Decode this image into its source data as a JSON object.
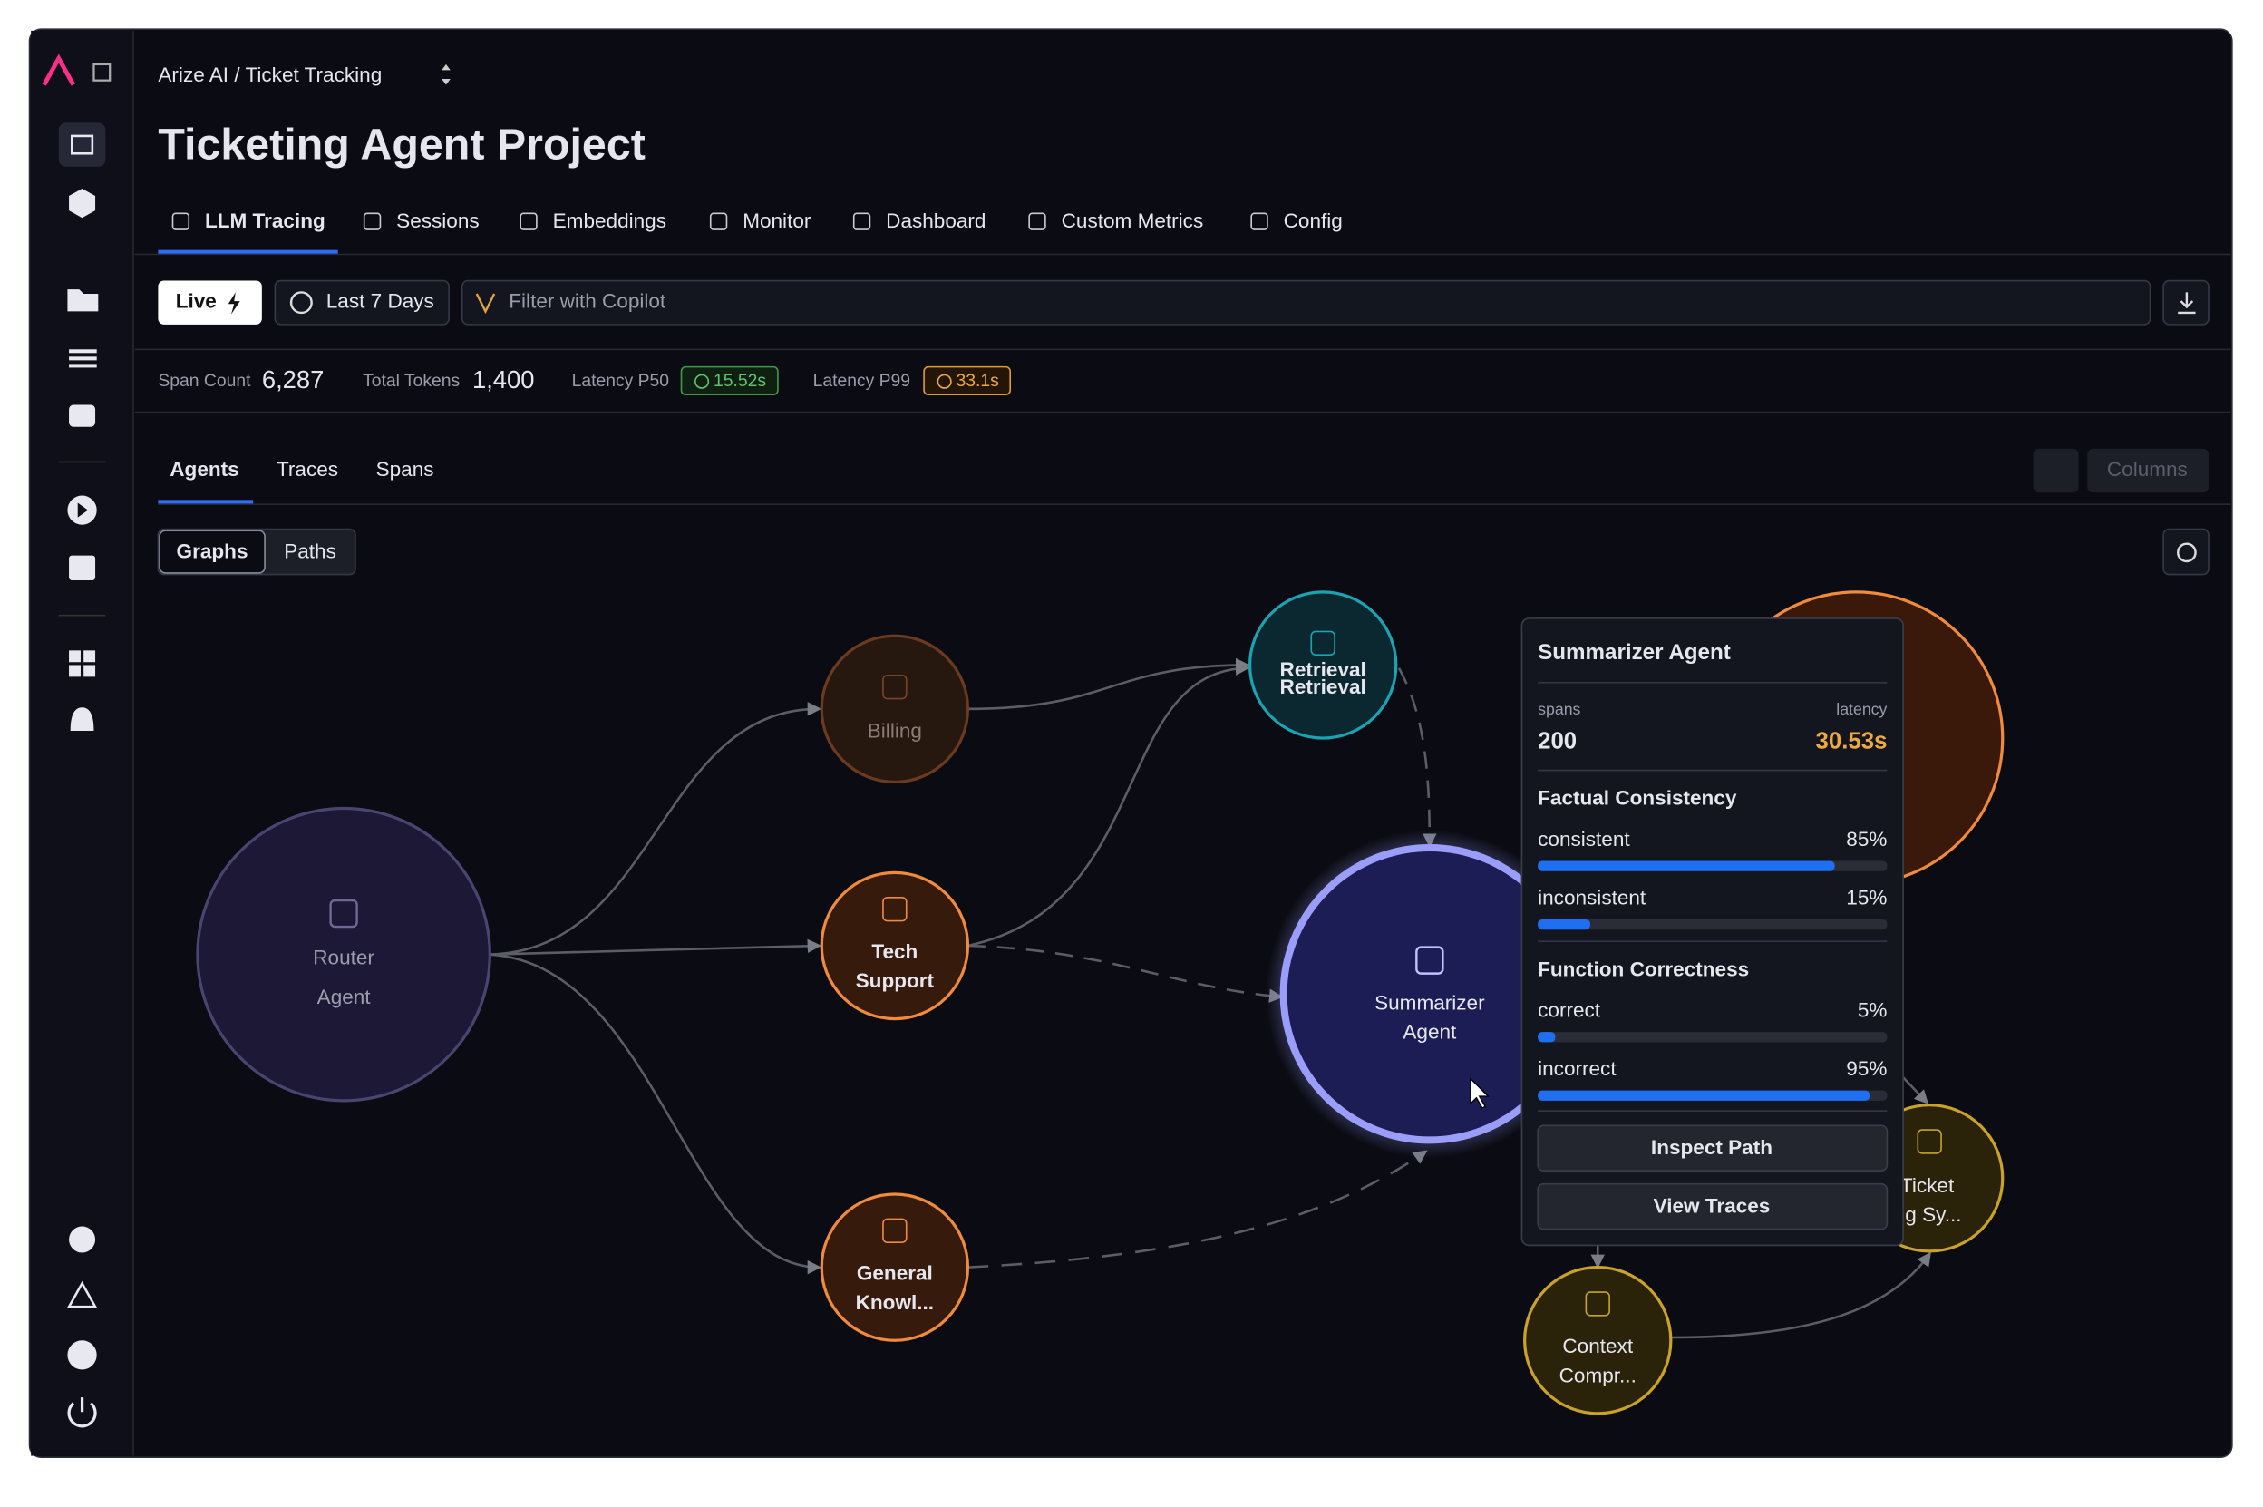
{
  "header": {
    "breadcrumb": "Arize AI / Ticket Tracking",
    "title": "Ticketing Agent Project"
  },
  "tabs": [
    "LLM Tracing",
    "Sessions",
    "Embeddings",
    "Monitor",
    "Dashboard",
    "Custom Metrics",
    "Config"
  ],
  "toolbar": {
    "live": "Live",
    "range": "Last 7 Days",
    "filter_placeholder": "Filter with Copilot"
  },
  "stats": [
    {
      "label": "Span Count",
      "value": "6,287"
    },
    {
      "label": "Total Tokens",
      "value": "1,400"
    },
    {
      "label": "Latency P50",
      "value": "15.52s"
    },
    {
      "label": "Latency P99",
      "value": "33.1s"
    }
  ],
  "subtabs": [
    "Agents",
    "Traces",
    "Spans"
  ],
  "columns_button": "Columns",
  "view_toggle": [
    "Graphs",
    "Paths"
  ],
  "nodes": [
    {
      "lines": [
        "Router",
        "Agent"
      ]
    },
    {
      "lines": [
        "Billing"
      ]
    },
    {
      "lines": [
        "Tech",
        "Support"
      ]
    },
    {
      "lines": [
        "General",
        "Knowl..."
      ]
    },
    {
      "lines": [
        "Retrieval",
        "Retrieval"
      ]
    },
    {
      "lines": [
        "Summarizer",
        "Agent"
      ]
    },
    {
      "lines": [
        "Context",
        "Compr..."
      ]
    },
    {
      "lines": [
        "Ticket",
        "Tracking Sy..."
      ]
    }
  ],
  "tooltip": {
    "title": "Summarizer Agent",
    "spans_label": "spans",
    "spans": "200",
    "latency_label": "latency",
    "latency": "30.53s",
    "sections": [
      {
        "title": "Factual Consistency",
        "metrics": [
          {
            "name": "consistent",
            "value": 85,
            "label": "85%"
          },
          {
            "name": "inconsistent",
            "value": 15,
            "label": "15%"
          }
        ]
      },
      {
        "title": "Function Correctness",
        "metrics": [
          {
            "name": "correct",
            "value": 5,
            "label": "5%"
          },
          {
            "name": "incorrect",
            "value": 95,
            "label": "95%"
          }
        ]
      }
    ],
    "buttons": [
      "Inspect Path",
      "View Traces"
    ]
  }
}
